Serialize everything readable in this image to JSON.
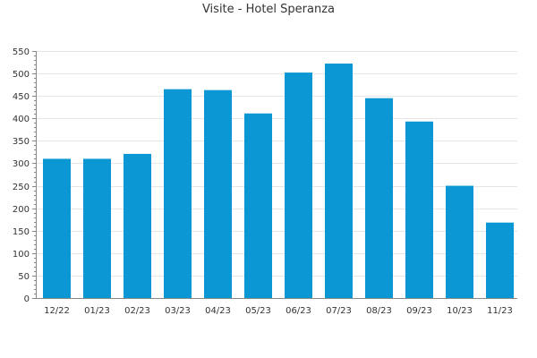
{
  "chart_data": {
    "type": "bar",
    "title": "Visite - Hotel Speranza",
    "xlabel": "",
    "ylabel": "",
    "categories": [
      "12/22",
      "01/23",
      "02/23",
      "03/23",
      "04/23",
      "05/23",
      "06/23",
      "07/23",
      "08/23",
      "09/23",
      "10/23",
      "11/23"
    ],
    "values": [
      310,
      310,
      321,
      465,
      463,
      411,
      502,
      522,
      445,
      393,
      250,
      168
    ],
    "ylim": [
      0,
      550
    ],
    "yticks": [
      0,
      50,
      100,
      150,
      200,
      250,
      300,
      350,
      400,
      450,
      500,
      550
    ],
    "grid": true,
    "legend": "none",
    "colors": {
      "bar": "#0b97d3",
      "grid": "#e6e6e6",
      "axis": "#888888"
    }
  }
}
